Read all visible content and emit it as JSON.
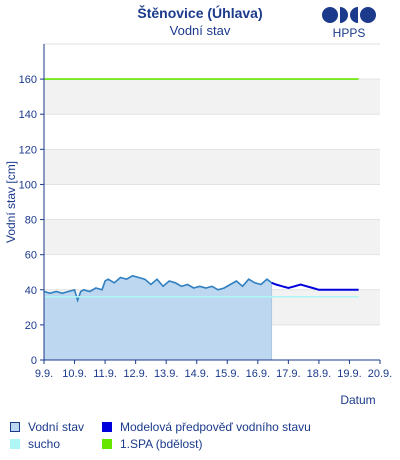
{
  "header": {
    "title": "Štěnovice (Úhlava)",
    "subtitle": "Vodní stav",
    "brand": "HPPS"
  },
  "legend": [
    {
      "label": "Vodní stav",
      "color": "#bcd7ef",
      "border": "#1b3a8c"
    },
    {
      "label": "Modelová předpověď vodního stavu",
      "color": "#0000dd",
      "border": "#0000dd"
    },
    {
      "label": "sucho",
      "color": "#aef6f6",
      "border": "#aef6f6"
    },
    {
      "label": "1.SPA (bdělost)",
      "color": "#66e600",
      "border": "#66e600"
    }
  ],
  "chart_data": {
    "type": "line",
    "title": "Štěnovice (Úhlava)",
    "subtitle": "Vodní stav",
    "xlabel": "Datum",
    "ylabel": "Vodní stav [cm]",
    "ylim": [
      0,
      180
    ],
    "yticks": [
      0,
      20,
      40,
      60,
      80,
      100,
      120,
      140,
      160
    ],
    "xlim": [
      9,
      20
    ],
    "xtick_labels": [
      "9.9.",
      "10.9.",
      "11.9.",
      "12.9.",
      "13.9.",
      "14.9.",
      "15.9.",
      "16.9.",
      "17.9.",
      "18.9.",
      "19.9.",
      "20.9."
    ],
    "grid": "horizontal bands",
    "series": [
      {
        "name": "Vodní stav",
        "style": "area",
        "color": "#2f7fc1",
        "fill": "#bcd7ef",
        "x": [
          9.0,
          9.2,
          9.4,
          9.6,
          9.8,
          10.0,
          10.1,
          10.2,
          10.3,
          10.5,
          10.7,
          10.9,
          11.0,
          11.1,
          11.3,
          11.5,
          11.7,
          11.9,
          12.1,
          12.3,
          12.5,
          12.7,
          12.9,
          13.1,
          13.3,
          13.5,
          13.7,
          13.9,
          14.1,
          14.3,
          14.5,
          14.7,
          14.9,
          15.1,
          15.3,
          15.5,
          15.7,
          15.9,
          16.1,
          16.3,
          16.45
        ],
        "values": [
          39,
          38,
          39,
          38,
          39,
          40,
          34,
          39,
          40,
          39,
          41,
          40,
          45,
          46,
          44,
          47,
          46,
          48,
          47,
          46,
          43,
          46,
          42,
          45,
          44,
          42,
          43,
          41,
          42,
          41,
          42,
          40,
          41,
          43,
          45,
          42,
          46,
          44,
          43,
          46,
          44
        ]
      },
      {
        "name": "Modelová předpověď vodního stavu",
        "style": "line",
        "color": "#0000dd",
        "x": [
          16.45,
          16.6,
          16.8,
          17.0,
          17.2,
          17.4,
          17.6,
          17.8,
          18.0,
          18.5,
          19.0,
          19.3
        ],
        "values": [
          44,
          43,
          42,
          41,
          42,
          43,
          42,
          41,
          40,
          40,
          40,
          40
        ]
      },
      {
        "name": "sucho",
        "style": "line",
        "color": "#aef6f6",
        "x": [
          9.0,
          19.3
        ],
        "values": [
          36,
          36
        ]
      },
      {
        "name": "1.SPA (bdělost)",
        "style": "line",
        "color": "#66e600",
        "x": [
          9.0,
          19.3
        ],
        "values": [
          160,
          160
        ]
      }
    ]
  }
}
